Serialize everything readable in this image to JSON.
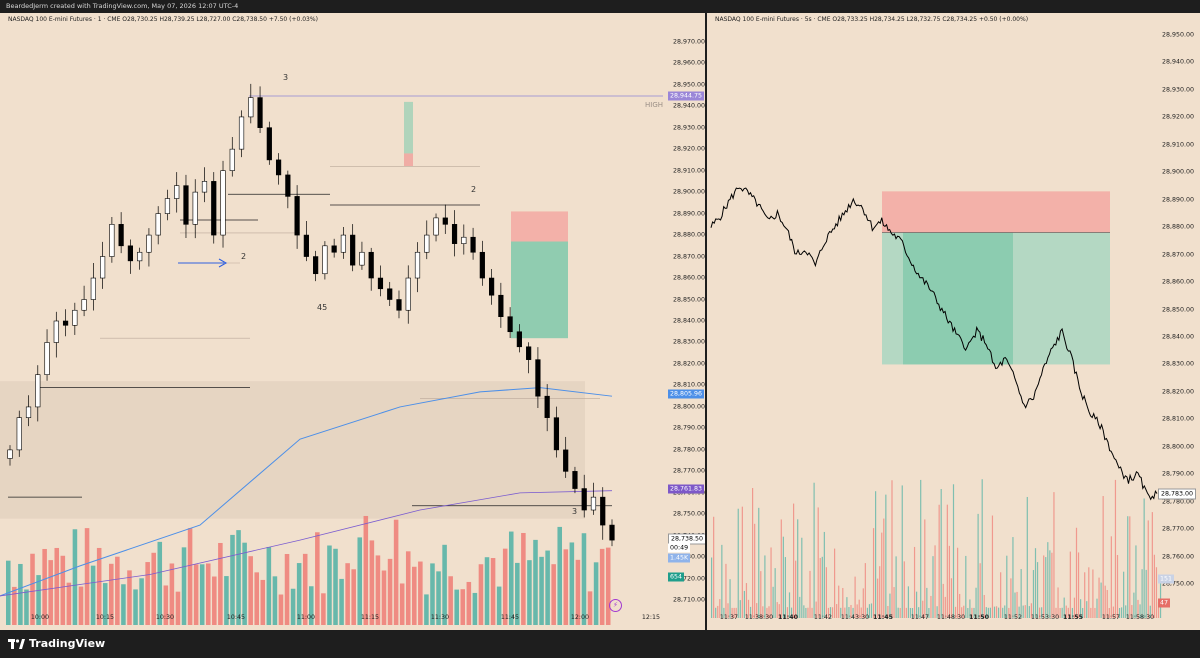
{
  "header": {
    "text": "BeardedJerm created with TradingView.com, May 07, 2026 12:07 UTC-4"
  },
  "left_chart": {
    "legend": "NASDAQ 100 E-mini Futures · 1 · CME  O28,730.25  H28,739.25  L28,727.00  C28,738.50  +7.50 (+0.03%)",
    "price_labels": [
      "28,970.00",
      "28,960.00",
      "28,950.00",
      "28,940.00",
      "28,930.00",
      "28,920.00",
      "28,910.00",
      "28,900.00",
      "28,890.00",
      "28,880.00",
      "28,870.00",
      "28,860.00",
      "28,850.00",
      "28,840.00",
      "28,830.00",
      "28,820.00",
      "28,810.00",
      "28,800.00",
      "28,790.00",
      "28,780.00",
      "28,770.00",
      "28,760.00",
      "28,750.00",
      "28,740.00",
      "28,730.00",
      "28,720.00",
      "28,710.00"
    ],
    "time_labels": [
      "10:00",
      "10:15",
      "10:30",
      "10:45",
      "11:00",
      "11:15",
      "11:30",
      "11:45",
      "12:00",
      "12:15"
    ],
    "tags": {
      "high": "28,944.75",
      "ma_blue": "28,805.96",
      "ma_purple": "28,761.83",
      "last_price": "28,738.50",
      "countdown": "00:49",
      "volume": "1.45K",
      "volume_ma": "654"
    },
    "high_label": "HIGH",
    "annotations": [
      "3",
      "2",
      "2",
      "45",
      "3"
    ]
  },
  "right_chart": {
    "legend": "NASDAQ 100 E-mini Futures · 5s · CME  O28,733.25  H28,734.25  L28,732.75  C28,734.25  +0.50 (+0.00%)",
    "price_labels": [
      "28,950.00",
      "28,940.00",
      "28,930.00",
      "28,920.00",
      "28,910.00",
      "28,900.00",
      "28,890.00",
      "28,880.00",
      "28,870.00",
      "28,860.00",
      "28,850.00",
      "28,840.00",
      "28,830.00",
      "28,820.00",
      "28,810.00",
      "28,800.00",
      "28,790.00",
      "28,780.00",
      "28,770.00",
      "28,760.00",
      "28,750.00"
    ],
    "time_labels": [
      "11:37",
      "11:38:30",
      "11:40",
      "11:42",
      "11:43:30",
      "11:45",
      "11:47",
      "11:48:30",
      "11:50",
      "11:52",
      "11:53:30",
      "11:55",
      "11:57",
      "11:58:30"
    ],
    "time_bold": [
      "11:40",
      "11:45",
      "11:50",
      "11:55"
    ],
    "tags": {
      "last_price": "28,783.00",
      "volume": "47",
      "volume_ma": "151"
    }
  },
  "footer": {
    "brand": "TradingView"
  },
  "colors": {
    "bg": "#f1e0cd",
    "up": "#ffffff",
    "down": "#000000",
    "vol_up": "#4fb0a4",
    "vol_down": "#ef7b74",
    "stop": "#f3a8a2",
    "target": "#7fc8aa",
    "ma_blue": "#4c8fe8",
    "ma_purple": "#7a5bd0"
  },
  "chart_data": {
    "type": "candlestick",
    "left": {
      "interval": "1",
      "ylim": [
        28705,
        28975
      ],
      "x_labels": [
        "10:00",
        "10:15",
        "10:30",
        "10:45",
        "11:00",
        "11:15",
        "11:30",
        "11:45",
        "12:00"
      ],
      "key_levels": {
        "high": 28944.75,
        "ma_blue": 28805.96,
        "ma_purple": 28761.83,
        "last": 28738.5
      },
      "close_path": [
        28780,
        28795,
        28800,
        28815,
        28830,
        28840,
        28838,
        28845,
        28850,
        28860,
        28870,
        28885,
        28875,
        28868,
        28872,
        28880,
        28890,
        28897,
        28903,
        28885,
        28900,
        28905,
        28880,
        28910,
        28920,
        28935,
        28944,
        28930,
        28915,
        28908,
        28898,
        28880,
        28870,
        28862,
        28875,
        28872,
        28880,
        28866,
        28872,
        28860,
        28855,
        28850,
        28845,
        28860,
        28872,
        28880,
        28888,
        28885,
        28876,
        28879,
        28872,
        28860,
        28852,
        28842,
        28835,
        28828,
        28822,
        28805,
        28795,
        28780,
        28770,
        28762,
        28752,
        28758,
        28745,
        28738
      ]
    },
    "right": {
      "interval": "5s",
      "ylim": [
        28745,
        28955
      ],
      "x_labels": [
        "11:37",
        "11:38:30",
        "11:40",
        "11:42",
        "11:43:30",
        "11:45",
        "11:47",
        "11:48:30",
        "11:50",
        "11:52",
        "11:53:30",
        "11:55",
        "11:57",
        "11:58:30"
      ],
      "key_levels": {
        "last": 28783.0
      },
      "close_path": [
        28880,
        28884,
        28890,
        28895,
        28892,
        28888,
        28882,
        28885,
        28879,
        28870,
        28872,
        28866,
        28875,
        28880,
        28885,
        28890,
        28887,
        28880,
        28882,
        28878,
        28875,
        28868,
        28862,
        28858,
        28852,
        28846,
        28840,
        28836,
        28842,
        28838,
        28828,
        28832,
        28825,
        28815,
        28818,
        28828,
        28836,
        28842,
        28832,
        28820,
        28812,
        28808,
        28800,
        28792,
        28788,
        28790,
        28782,
        28783
      ]
    }
  }
}
